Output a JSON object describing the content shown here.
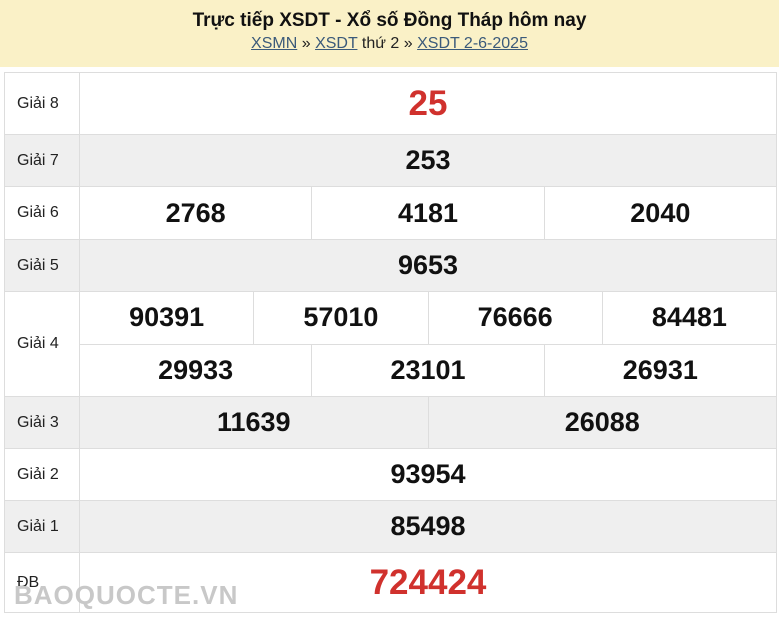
{
  "header": {
    "title": "Trực tiếp XSDT - Xổ số Đồng Tháp hôm nay",
    "crumbs": {
      "link1": "XSMN",
      "sep1": " » ",
      "link2": "XSDT",
      "text2": " thứ 2",
      "sep2": " » ",
      "link3": "XSDT 2-6-2025"
    }
  },
  "results": [
    {
      "label": "Giải 8",
      "lines": [
        [
          "25"
        ]
      ]
    },
    {
      "label": "Giải 7",
      "lines": [
        [
          "253"
        ]
      ]
    },
    {
      "label": "Giải 6",
      "lines": [
        [
          "2768",
          "4181",
          "2040"
        ]
      ]
    },
    {
      "label": "Giải 5",
      "lines": [
        [
          "9653"
        ]
      ]
    },
    {
      "label": "Giải 4",
      "lines": [
        [
          "90391",
          "57010",
          "76666",
          "84481"
        ],
        [
          "29933",
          "23101",
          "26931"
        ]
      ]
    },
    {
      "label": "Giải 3",
      "lines": [
        [
          "11639",
          "26088"
        ]
      ]
    },
    {
      "label": "Giải 2",
      "lines": [
        [
          "93954"
        ]
      ]
    },
    {
      "label": "Giải 1",
      "lines": [
        [
          "85498"
        ]
      ]
    },
    {
      "label": "ĐB",
      "lines": [
        [
          "724424"
        ]
      ]
    }
  ],
  "watermark": "BAOQUOCTE.VN",
  "colors": {
    "header_bg": "#faf1c7",
    "highlight": "#d0312d",
    "row_alt": "#efefef"
  }
}
